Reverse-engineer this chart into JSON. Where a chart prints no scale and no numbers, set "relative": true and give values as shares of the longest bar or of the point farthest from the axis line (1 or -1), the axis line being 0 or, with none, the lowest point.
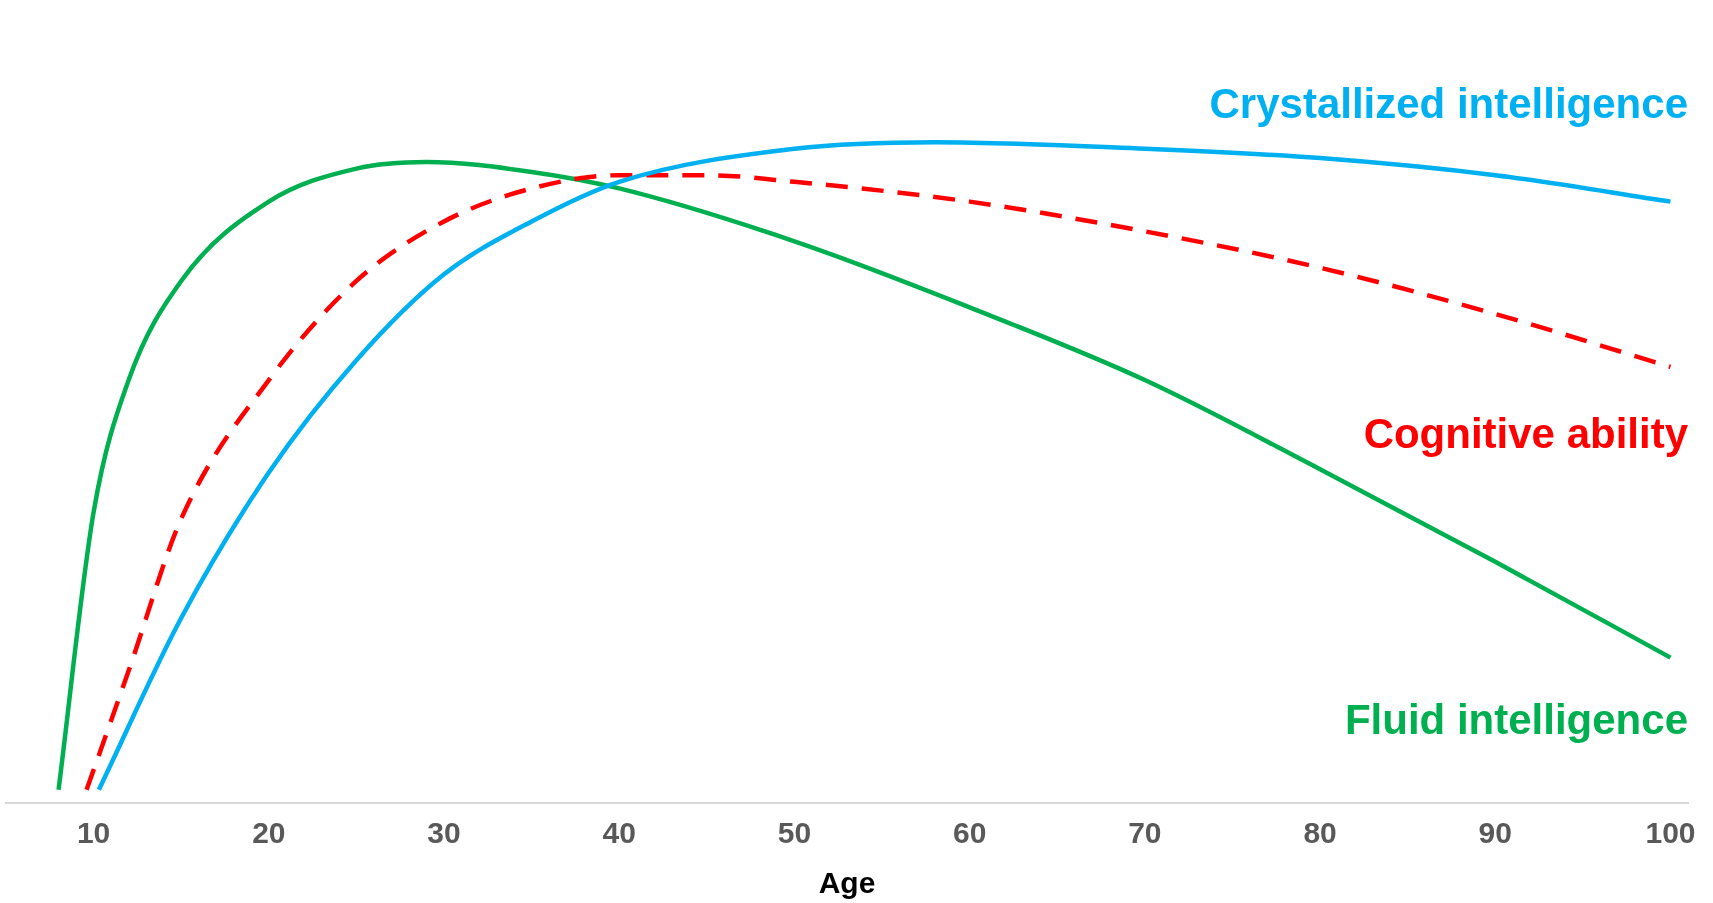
{
  "chart_data": {
    "type": "line",
    "relative": true,
    "xlabel": "Age",
    "xlim": [
      5,
      101
    ],
    "xticks": [
      10,
      20,
      30,
      40,
      50,
      60,
      70,
      80,
      90,
      100
    ],
    "grid": false,
    "legend": false,
    "marker": "none",
    "series": [
      {
        "name": "Crystallized intelligence",
        "color": "#00b0f0",
        "line_style": "solid",
        "x": [
          10.3,
          15,
          20,
          25,
          30,
          35,
          40,
          50,
          58,
          70,
          80,
          90,
          100
        ],
        "values": [
          0.02,
          0.28,
          0.5,
          0.67,
          0.8,
          0.88,
          0.94,
          0.99,
          1,
          0.99,
          0.976,
          0.95,
          0.91
        ]
      },
      {
        "name": "Cognitive ability",
        "color": "#ff0000",
        "line_style": "dashed",
        "x": [
          9.6,
          12,
          15,
          20,
          25,
          30,
          35,
          40,
          45,
          50,
          60,
          70,
          80,
          90,
          100
        ],
        "values": [
          0.02,
          0.2,
          0.43,
          0.64,
          0.79,
          0.88,
          0.93,
          0.95,
          0.95,
          0.94,
          0.91,
          0.865,
          0.81,
          0.74,
          0.66
        ]
      },
      {
        "name": "Fluid intelligence",
        "color": "#00b050",
        "line_style": "solid",
        "x": [
          8,
          10,
          12,
          15,
          20,
          25,
          29,
          35,
          40,
          50,
          60,
          70,
          80,
          90,
          100
        ],
        "values": [
          0.02,
          0.44,
          0.64,
          0.79,
          0.91,
          0.96,
          0.97,
          0.955,
          0.93,
          0.85,
          0.75,
          0.64,
          0.505,
          0.365,
          0.22
        ]
      }
    ]
  }
}
